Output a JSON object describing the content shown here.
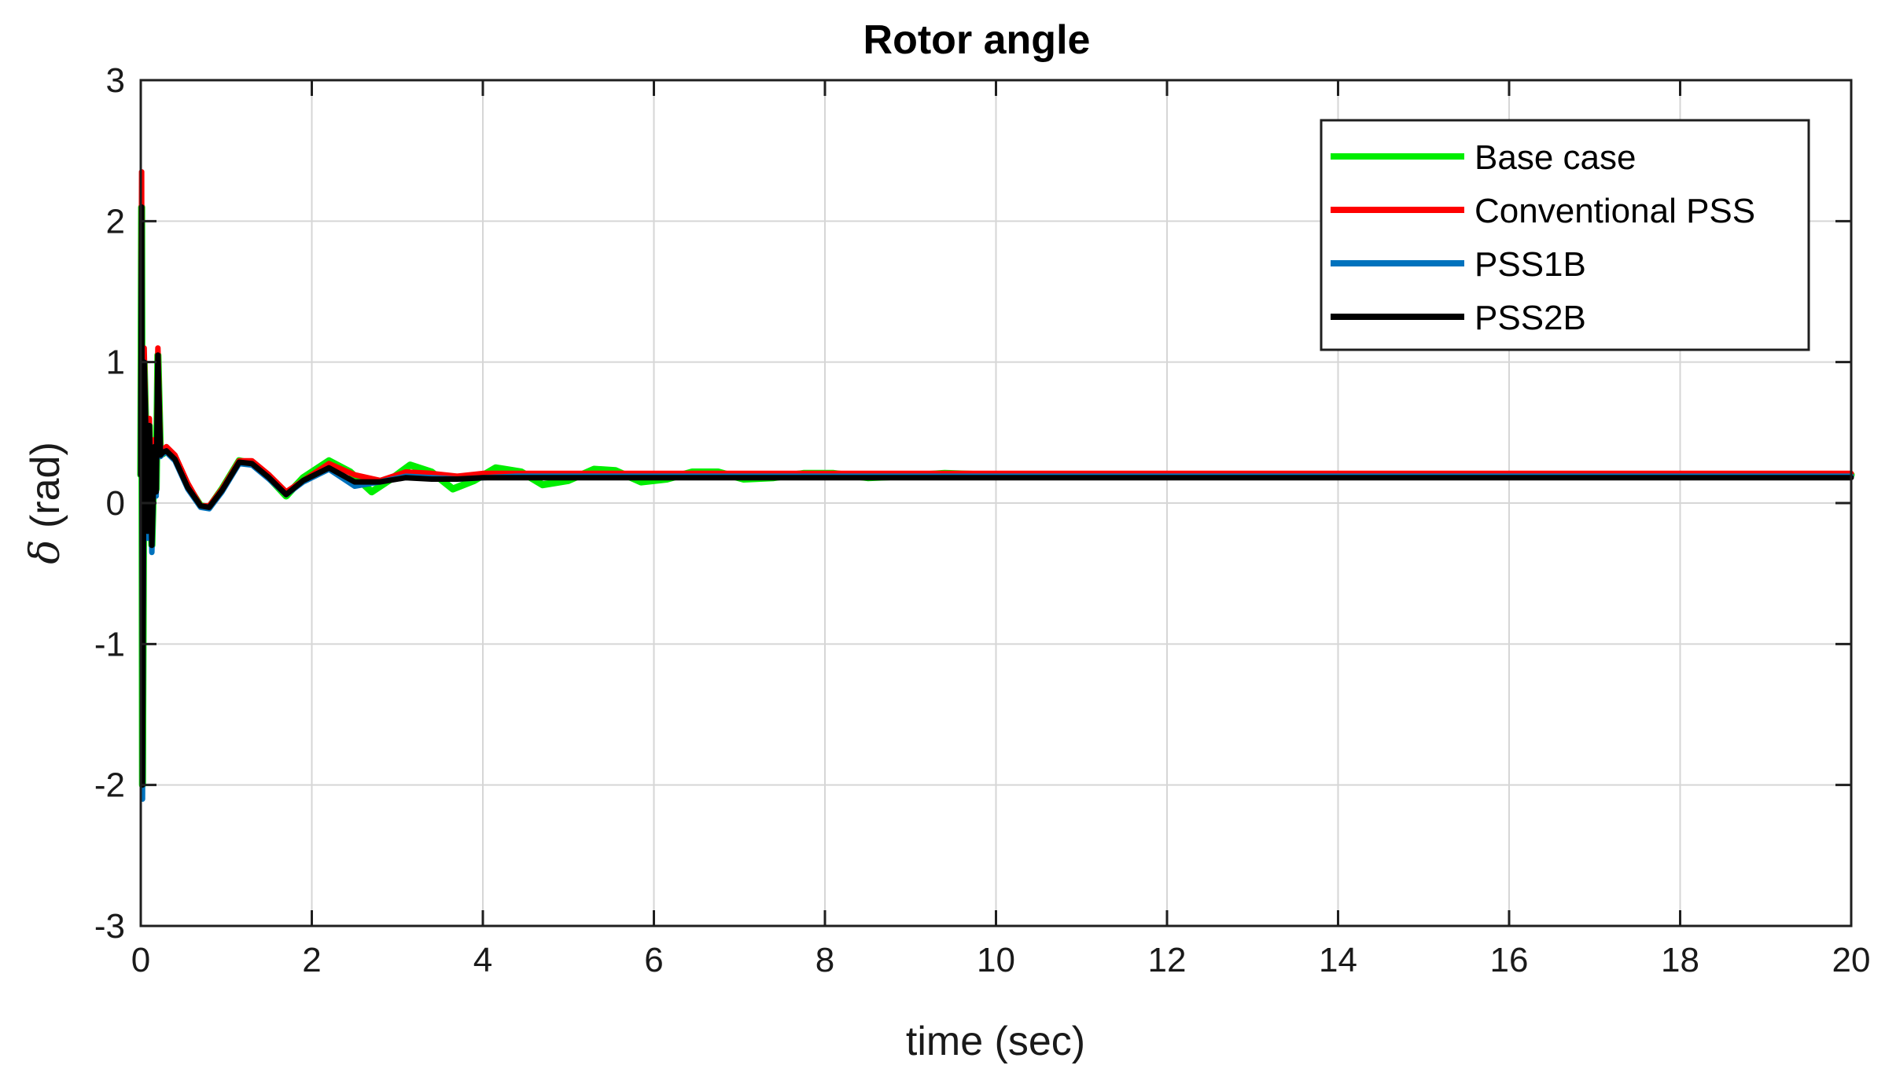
{
  "chart_data": {
    "type": "line",
    "title": "Rotor angle",
    "xlabel": "time (sec)",
    "ylabel_symbol": "δ",
    "ylabel_unit": " (rad)",
    "xlim": [
      0,
      20
    ],
    "ylim": [
      -3,
      3
    ],
    "xticks": [
      0,
      2,
      4,
      6,
      8,
      10,
      12,
      14,
      16,
      18,
      20
    ],
    "yticks": [
      -3,
      -2,
      -1,
      0,
      1,
      2,
      3
    ],
    "grid": true,
    "legend_position": "top-right",
    "series": [
      {
        "name": "Base case",
        "color": "#00ee00",
        "x": [
          0,
          0.01,
          0.02,
          0.04,
          0.06,
          0.08,
          0.1,
          0.13,
          0.16,
          0.18,
          0.2,
          0.23,
          0.26,
          0.3,
          0.4,
          0.55,
          0.7,
          0.8,
          0.95,
          1.15,
          1.3,
          1.5,
          1.7,
          1.9,
          2.2,
          2.45,
          2.7,
          2.95,
          3.15,
          3.4,
          3.65,
          3.9,
          4.15,
          4.45,
          4.7,
          5.0,
          5.3,
          5.55,
          5.85,
          6.15,
          6.45,
          6.75,
          7.05,
          7.4,
          7.75,
          8.1,
          8.5,
          8.9,
          9.4,
          9.9,
          10.5,
          11.2,
          12.0,
          13.0,
          14.0,
          15.0,
          16.0,
          17.0,
          18.0,
          19.0,
          20.0
        ],
        "y": [
          0.2,
          2.1,
          -2.0,
          1.0,
          0.5,
          -0.2,
          0.55,
          -0.3,
          0.4,
          0.1,
          1.05,
          0.35,
          0.35,
          0.38,
          0.32,
          0.12,
          -0.02,
          -0.03,
          0.1,
          0.3,
          0.28,
          0.18,
          0.05,
          0.18,
          0.3,
          0.22,
          0.08,
          0.18,
          0.27,
          0.22,
          0.1,
          0.16,
          0.25,
          0.22,
          0.13,
          0.16,
          0.24,
          0.23,
          0.15,
          0.17,
          0.22,
          0.22,
          0.17,
          0.18,
          0.21,
          0.21,
          0.18,
          0.19,
          0.21,
          0.2,
          0.19,
          0.2,
          0.2,
          0.2,
          0.2,
          0.2,
          0.2,
          0.2,
          0.2,
          0.2,
          0.2
        ]
      },
      {
        "name": "Conventional PSS",
        "color": "#ff0000",
        "x": [
          0,
          0.01,
          0.02,
          0.04,
          0.06,
          0.08,
          0.1,
          0.13,
          0.16,
          0.18,
          0.2,
          0.23,
          0.26,
          0.3,
          0.4,
          0.55,
          0.7,
          0.8,
          0.95,
          1.15,
          1.3,
          1.5,
          1.7,
          1.9,
          2.2,
          2.5,
          2.8,
          3.1,
          3.4,
          3.7,
          4.0,
          4.4,
          5.0,
          6.0,
          8.0,
          10.0,
          12.0,
          14.0,
          16.0,
          18.0,
          20.0
        ],
        "y": [
          0.2,
          2.35,
          -1.95,
          1.1,
          0.55,
          -0.15,
          0.6,
          -0.25,
          0.45,
          0.1,
          1.1,
          0.38,
          0.38,
          0.4,
          0.34,
          0.14,
          -0.02,
          -0.02,
          0.1,
          0.3,
          0.3,
          0.2,
          0.08,
          0.16,
          0.28,
          0.2,
          0.16,
          0.22,
          0.21,
          0.19,
          0.21,
          0.21,
          0.21,
          0.21,
          0.21,
          0.21,
          0.21,
          0.21,
          0.21,
          0.21,
          0.21
        ]
      },
      {
        "name": "PSS1B",
        "color": "#0072bd",
        "x": [
          0,
          0.01,
          0.02,
          0.04,
          0.06,
          0.08,
          0.1,
          0.13,
          0.16,
          0.18,
          0.2,
          0.23,
          0.26,
          0.3,
          0.4,
          0.55,
          0.7,
          0.8,
          0.95,
          1.15,
          1.3,
          1.5,
          1.7,
          1.9,
          2.2,
          2.5,
          2.8,
          3.1,
          3.4,
          3.7,
          4.0,
          4.4,
          5.0,
          6.0,
          8.0,
          10.0,
          12.0,
          14.0,
          16.0,
          18.0,
          20.0
        ],
        "y": [
          0.2,
          2.0,
          -2.1,
          1.0,
          0.5,
          -0.25,
          0.55,
          -0.35,
          0.4,
          0.05,
          1.0,
          0.33,
          0.35,
          0.36,
          0.3,
          0.1,
          -0.03,
          -0.04,
          0.08,
          0.28,
          0.27,
          0.17,
          0.06,
          0.15,
          0.24,
          0.12,
          0.15,
          0.19,
          0.18,
          0.17,
          0.18,
          0.19,
          0.19,
          0.19,
          0.19,
          0.19,
          0.19,
          0.19,
          0.19,
          0.19,
          0.19
        ]
      },
      {
        "name": "PSS2B",
        "color": "#000000",
        "x": [
          0,
          0.01,
          0.02,
          0.04,
          0.06,
          0.08,
          0.1,
          0.13,
          0.16,
          0.18,
          0.2,
          0.23,
          0.26,
          0.3,
          0.4,
          0.55,
          0.7,
          0.8,
          0.95,
          1.15,
          1.3,
          1.5,
          1.7,
          1.9,
          2.2,
          2.5,
          2.8,
          3.1,
          3.4,
          3.7,
          4.0,
          4.4,
          5.0,
          6.0,
          8.0,
          10.0,
          12.0,
          14.0,
          16.0,
          18.0,
          20.0
        ],
        "y": [
          0.2,
          2.1,
          -2.0,
          1.0,
          0.5,
          -0.2,
          0.55,
          -0.3,
          0.4,
          0.08,
          1.05,
          0.34,
          0.36,
          0.37,
          0.31,
          0.11,
          -0.02,
          -0.03,
          0.09,
          0.29,
          0.28,
          0.18,
          0.06,
          0.16,
          0.25,
          0.15,
          0.15,
          0.18,
          0.17,
          0.17,
          0.18,
          0.18,
          0.18,
          0.18,
          0.18,
          0.18,
          0.18,
          0.18,
          0.18,
          0.18,
          0.18
        ]
      }
    ]
  }
}
